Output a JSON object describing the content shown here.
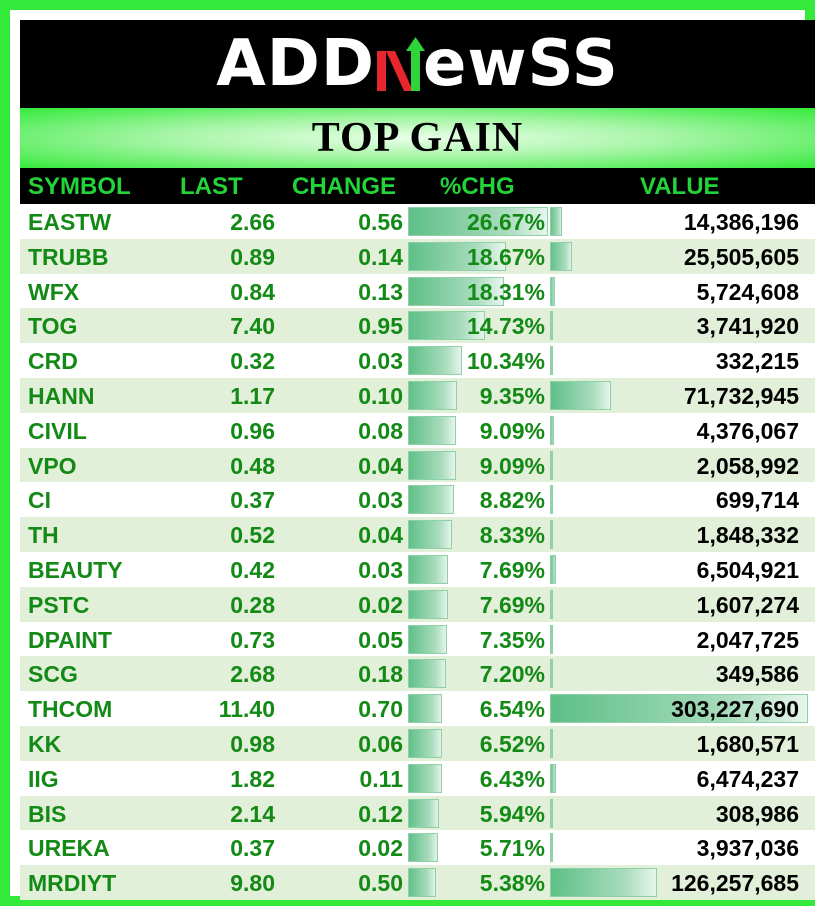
{
  "brand": {
    "name_left": "ADD",
    "name_right": "ewSS",
    "logo_mark_icon": "n-arrow-mark"
  },
  "title": "TOP GAIN",
  "headers": {
    "symbol": "SYMBOL",
    "last": "LAST",
    "change": "CHANGE",
    "pct": "%CHG",
    "value": "VALUE"
  },
  "colors": {
    "frame_green": "#33ea3a",
    "header_text_green": "#22d438",
    "cell_green": "#138a16",
    "row_alt": "#e2efd9"
  },
  "rows": [
    {
      "symbol": "EASTW",
      "last": "2.66",
      "change": "0.56",
      "pct": "26.67%",
      "value": "14,386,196",
      "pct_num": 26.67,
      "value_num": 14386196
    },
    {
      "symbol": "TRUBB",
      "last": "0.89",
      "change": "0.14",
      "pct": "18.67%",
      "value": "25,505,605",
      "pct_num": 18.67,
      "value_num": 25505605
    },
    {
      "symbol": "WFX",
      "last": "0.84",
      "change": "0.13",
      "pct": "18.31%",
      "value": "5,724,608",
      "pct_num": 18.31,
      "value_num": 5724608
    },
    {
      "symbol": "TOG",
      "last": "7.40",
      "change": "0.95",
      "pct": "14.73%",
      "value": "3,741,920",
      "pct_num": 14.73,
      "value_num": 3741920
    },
    {
      "symbol": "CRD",
      "last": "0.32",
      "change": "0.03",
      "pct": "10.34%",
      "value": "332,215",
      "pct_num": 10.34,
      "value_num": 332215
    },
    {
      "symbol": "HANN",
      "last": "1.17",
      "change": "0.10",
      "pct": "9.35%",
      "value": "71,732,945",
      "pct_num": 9.35,
      "value_num": 71732945
    },
    {
      "symbol": "CIVIL",
      "last": "0.96",
      "change": "0.08",
      "pct": "9.09%",
      "value": "4,376,067",
      "pct_num": 9.09,
      "value_num": 4376067
    },
    {
      "symbol": "VPO",
      "last": "0.48",
      "change": "0.04",
      "pct": "9.09%",
      "value": "2,058,992",
      "pct_num": 9.09,
      "value_num": 2058992
    },
    {
      "symbol": "CI",
      "last": "0.37",
      "change": "0.03",
      "pct": "8.82%",
      "value": "699,714",
      "pct_num": 8.82,
      "value_num": 699714
    },
    {
      "symbol": "TH",
      "last": "0.52",
      "change": "0.04",
      "pct": "8.33%",
      "value": "1,848,332",
      "pct_num": 8.33,
      "value_num": 1848332
    },
    {
      "symbol": "BEAUTY",
      "last": "0.42",
      "change": "0.03",
      "pct": "7.69%",
      "value": "6,504,921",
      "pct_num": 7.69,
      "value_num": 6504921
    },
    {
      "symbol": "PSTC",
      "last": "0.28",
      "change": "0.02",
      "pct": "7.69%",
      "value": "1,607,274",
      "pct_num": 7.69,
      "value_num": 1607274
    },
    {
      "symbol": "DPAINT",
      "last": "0.73",
      "change": "0.05",
      "pct": "7.35%",
      "value": "2,047,725",
      "pct_num": 7.35,
      "value_num": 2047725
    },
    {
      "symbol": "SCG",
      "last": "2.68",
      "change": "0.18",
      "pct": "7.20%",
      "value": "349,586",
      "pct_num": 7.2,
      "value_num": 349586
    },
    {
      "symbol": "THCOM",
      "last": "11.40",
      "change": "0.70",
      "pct": "6.54%",
      "value": "303,227,690",
      "pct_num": 6.54,
      "value_num": 303227690
    },
    {
      "symbol": "KK",
      "last": "0.98",
      "change": "0.06",
      "pct": "6.52%",
      "value": "1,680,571",
      "pct_num": 6.52,
      "value_num": 1680571
    },
    {
      "symbol": "IIG",
      "last": "1.82",
      "change": "0.11",
      "pct": "6.43%",
      "value": "6,474,237",
      "pct_num": 6.43,
      "value_num": 6474237
    },
    {
      "symbol": "BIS",
      "last": "2.14",
      "change": "0.12",
      "pct": "5.94%",
      "value": "308,986",
      "pct_num": 5.94,
      "value_num": 308986
    },
    {
      "symbol": "UREKA",
      "last": "0.37",
      "change": "0.02",
      "pct": "5.71%",
      "value": "3,937,036",
      "pct_num": 5.71,
      "value_num": 3937036
    },
    {
      "symbol": "MRDIYT",
      "last": "9.80",
      "change": "0.50",
      "pct": "5.38%",
      "value": "126,257,685",
      "pct_num": 5.38,
      "value_num": 126257685
    }
  ]
}
